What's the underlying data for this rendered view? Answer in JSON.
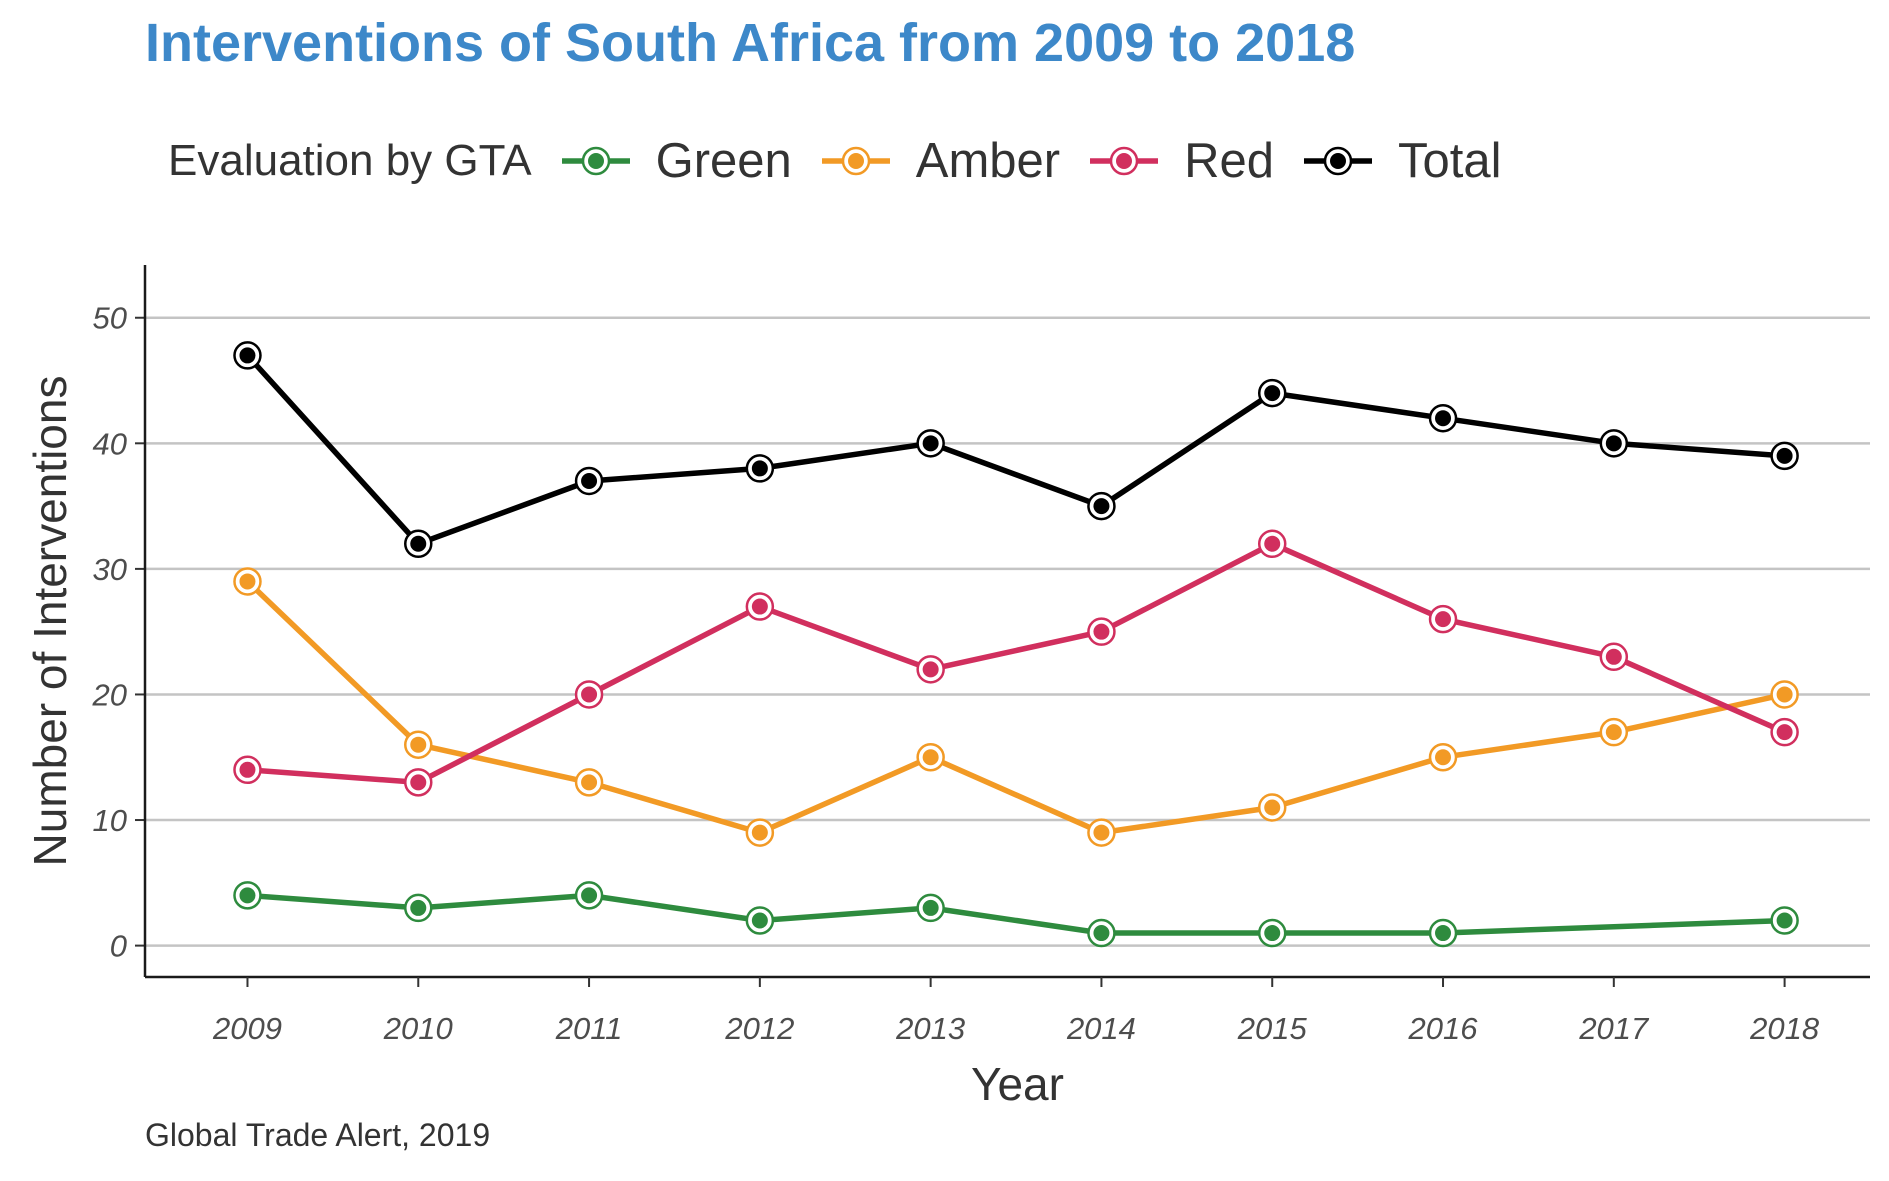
{
  "chart_data": {
    "type": "line",
    "title": "Interventions of South Africa from 2009 to 2018",
    "xlabel": "Year",
    "ylabel": "Number of Interventions",
    "caption": "Global Trade Alert, 2019",
    "legend_title": "Evaluation by GTA",
    "legend_position": "top",
    "grid": "horizontal",
    "x": [
      2009,
      2010,
      2011,
      2012,
      2013,
      2014,
      2015,
      2016,
      2017,
      2018
    ],
    "x_tick_labels": [
      "2009",
      "2010",
      "2011",
      "2012",
      "2013",
      "2014",
      "2015",
      "2016",
      "2017",
      "2018"
    ],
    "y_ticks": [
      0,
      10,
      20,
      30,
      40,
      50
    ],
    "y_tick_labels": [
      "0",
      "10",
      "20",
      "30",
      "40",
      "50"
    ],
    "ylim": [
      -2.5,
      54.2
    ],
    "xlim": [
      2008.4,
      2018.5
    ],
    "series": [
      {
        "name": "Green",
        "color": "#2e8b3e",
        "values": [
          4,
          3,
          4,
          2,
          3,
          1,
          1,
          1,
          null,
          2
        ],
        "line_values": [
          4,
          3,
          4,
          2,
          3,
          1,
          1,
          1,
          1.5,
          2
        ]
      },
      {
        "name": "Amber",
        "color": "#f29a25",
        "values": [
          29,
          16,
          13,
          9,
          15,
          9,
          11,
          15,
          17,
          20
        ]
      },
      {
        "name": "Red",
        "color": "#d12f5e",
        "values": [
          14,
          13,
          20,
          27,
          22,
          25,
          32,
          26,
          23,
          17
        ]
      },
      {
        "name": "Total",
        "color": "#000000",
        "values": [
          47,
          32,
          37,
          38,
          40,
          35,
          44,
          42,
          40,
          39
        ]
      }
    ]
  }
}
